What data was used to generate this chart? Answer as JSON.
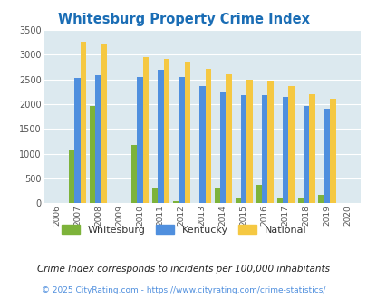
{
  "title": "Whitesburg Property Crime Index",
  "years": [
    2006,
    2007,
    2008,
    2009,
    2010,
    2011,
    2012,
    2013,
    2014,
    2015,
    2016,
    2017,
    2018,
    2019,
    2020
  ],
  "whitesburg": [
    0,
    1060,
    1970,
    0,
    1170,
    325,
    50,
    0,
    305,
    105,
    365,
    105,
    120,
    165,
    0
  ],
  "kentucky": [
    0,
    2530,
    2590,
    0,
    2550,
    2700,
    2550,
    2370,
    2250,
    2185,
    2185,
    2145,
    1965,
    1905,
    0
  ],
  "national": [
    0,
    3260,
    3210,
    0,
    2955,
    2910,
    2855,
    2720,
    2600,
    2495,
    2470,
    2370,
    2205,
    2115,
    0
  ],
  "whitesburg_color": "#7db33a",
  "kentucky_color": "#4f8fde",
  "national_color": "#f5c842",
  "bg_color": "#dce9ef",
  "title_color": "#1a6db5",
  "subtitle": "Crime Index corresponds to incidents per 100,000 inhabitants",
  "footer": "© 2025 CityRating.com - https://www.cityrating.com/crime-statistics/",
  "footer_color": "#4f8fde",
  "ylim": [
    0,
    3500
  ],
  "yticks": [
    0,
    500,
    1000,
    1500,
    2000,
    2500,
    3000,
    3500
  ],
  "bar_width": 0.28
}
